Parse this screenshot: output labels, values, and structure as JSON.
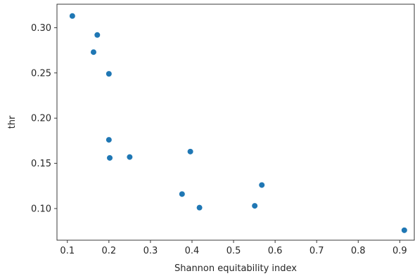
{
  "chart_data": {
    "type": "scatter",
    "title": "",
    "xlabel": "Shannon equitability index",
    "ylabel": "thr",
    "xlim": [
      0.075,
      0.935
    ],
    "ylim": [
      0.065,
      0.326
    ],
    "grid": false,
    "legend": "none",
    "xticks": [
      0.1,
      0.2,
      0.3,
      0.4,
      0.5,
      0.6,
      0.7,
      0.8,
      0.9
    ],
    "xtick_labels": [
      "0.1",
      "0.2",
      "0.3",
      "0.4",
      "0.5",
      "0.6",
      "0.7",
      "0.8",
      "0.9"
    ],
    "yticks": [
      0.1,
      0.15,
      0.2,
      0.25,
      0.3
    ],
    "ytick_labels": [
      "0.10",
      "0.15",
      "0.20",
      "0.25",
      "0.30"
    ],
    "marker_color": "#1f77b4",
    "series": [
      {
        "x": [
          0.112,
          0.172,
          0.163,
          0.2,
          0.2,
          0.202,
          0.25,
          0.396,
          0.376,
          0.418,
          0.568,
          0.551,
          0.911
        ],
        "y": [
          0.313,
          0.292,
          0.273,
          0.249,
          0.176,
          0.156,
          0.157,
          0.163,
          0.116,
          0.101,
          0.126,
          0.103,
          0.076
        ]
      }
    ]
  }
}
